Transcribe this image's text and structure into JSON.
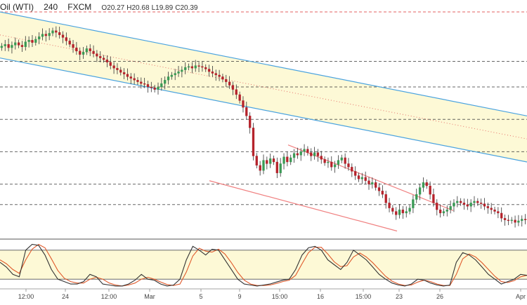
{
  "header": {
    "symbol": "Oil (WTI)",
    "interval": "240",
    "broker": "FXCM",
    "open": "O20.27",
    "high": "H20.68",
    "low": "L19.89",
    "close": "C20.39"
  },
  "colors": {
    "up_candle": "#3a9a55",
    "down_candle": "#b5222b",
    "wick": "#333333",
    "main_channel": "#4aa3df",
    "sub_channel": "#f08080",
    "channel_fill": "#fdf9d6",
    "dashed_level": "#333333",
    "top_level": "#e05050",
    "stoch_k": "#333333",
    "stoch_d": "#e05a2b",
    "stoch_band": "#fdf9d6",
    "axis_text": "#444444"
  },
  "chart_data": {
    "type": "candlestick",
    "x_ticks": [
      "12:00",
      "24",
      "12:00",
      "Mar",
      "5",
      "9",
      "15:00",
      "16",
      "15:00",
      "23",
      "26",
      "Apr"
    ],
    "candles_close": [
      16.4,
      16.6,
      16.2,
      16.5,
      16.8,
      16.5,
      16.3,
      16.9,
      17.1,
      16.8,
      17.2,
      17.5,
      17.8,
      17.6,
      17.9,
      18.2,
      18.0,
      17.7,
      17.4,
      17.0,
      16.6,
      16.2,
      15.8,
      15.4,
      15.7,
      16.1,
      15.8,
      15.5,
      15.2,
      15.0,
      14.8,
      14.5,
      14.1,
      13.8,
      13.6,
      13.3,
      13.1,
      12.8,
      12.6,
      12.4,
      12.2,
      12.0,
      11.9,
      11.6,
      11.5,
      11.3,
      11.6,
      12.0,
      12.4,
      12.8,
      13.0,
      13.2,
      13.4,
      13.6,
      13.9,
      14.0,
      13.8,
      14.1,
      14.0,
      13.9,
      13.7,
      13.4,
      13.2,
      13.0,
      12.8,
      12.5,
      12.2,
      11.8,
      11.3,
      10.7,
      10.0,
      9.2,
      8.2,
      6.8,
      3.5,
      2.4,
      1.8,
      3.0,
      2.6,
      3.2,
      2.8,
      1.5,
      2.6,
      3.4,
      2.8,
      3.3,
      3.8,
      3.6,
      4.0,
      4.3,
      3.9,
      3.5,
      3.9,
      3.5,
      3.1,
      2.7,
      2.8,
      2.2,
      2.5,
      3.0,
      3.3,
      2.6,
      2.2,
      1.7,
      1.2,
      0.8,
      1.0,
      0.6,
      0.2,
      0.4,
      -0.2,
      -0.6,
      -1.0,
      -2.0,
      -2.6,
      -3.0,
      -3.4,
      -2.8,
      -3.2,
      -3.0,
      -2.6,
      -1.6,
      -1.0,
      -0.2,
      0.4,
      0.0,
      -1.0,
      -2.0,
      -2.8,
      -3.2,
      -3.0,
      -2.8,
      -2.4,
      -2.0,
      -1.8,
      -2.0,
      -2.2,
      -2.4,
      -2.0,
      -1.8,
      -2.0,
      -2.1,
      -2.4,
      -2.6,
      -2.8,
      -3.0,
      -3.2,
      -3.8,
      -4.0,
      -4.1,
      -4.0,
      -4.3,
      -4.1,
      -3.9,
      -4.0
    ],
    "levels": [
      20.4,
      14.6,
      11.6,
      7.8,
      4.0,
      0.2,
      -2.2
    ],
    "main_channel_upper": [
      20.4,
      8.2
    ],
    "main_channel_lower": [
      15.0,
      2.8
    ],
    "sub_channel_upper": [
      4.8,
      -2.9
    ],
    "sub_channel_lower": [
      0.6,
      -5.3
    ],
    "stochastic": {
      "k": [
        55,
        45,
        30,
        25,
        80,
        92,
        90,
        70,
        40,
        20,
        15,
        10,
        10,
        15,
        30,
        25,
        10,
        8,
        6,
        6,
        10,
        18,
        30,
        20,
        18,
        10,
        6,
        8,
        20,
        60,
        88,
        80,
        70,
        82,
        80,
        60,
        40,
        20,
        10,
        8,
        6,
        8,
        10,
        14,
        18,
        20,
        40,
        70,
        85,
        88,
        80,
        60,
        50,
        40,
        55,
        80,
        70,
        60,
        45,
        30,
        20,
        12,
        8,
        6,
        10,
        20,
        18,
        12,
        8,
        6,
        8,
        55,
        75,
        70,
        60,
        45,
        30,
        20,
        10,
        15,
        20,
        30,
        28
      ],
      "d": [
        60,
        52,
        40,
        32,
        60,
        82,
        92,
        85,
        62,
        38,
        22,
        15,
        12,
        12,
        20,
        24,
        20,
        12,
        8,
        6,
        8,
        12,
        20,
        24,
        20,
        14,
        9,
        7,
        10,
        35,
        68,
        84,
        78,
        76,
        82,
        72,
        54,
        34,
        18,
        10,
        7,
        7,
        8,
        11,
        15,
        18,
        28,
        52,
        75,
        86,
        86,
        72,
        56,
        46,
        48,
        66,
        74,
        66,
        54,
        40,
        26,
        16,
        10,
        7,
        8,
        14,
        18,
        15,
        10,
        7,
        7,
        30,
        62,
        72,
        66,
        54,
        40,
        26,
        15,
        13,
        17,
        25,
        28
      ],
      "upper_band": 80,
      "lower_band": 20
    }
  }
}
